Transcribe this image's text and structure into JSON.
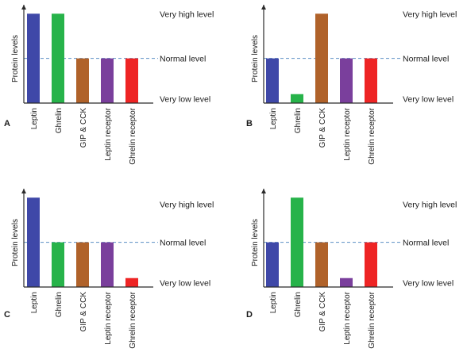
{
  "colors": {
    "Leptin": "#3f48a8",
    "Ghrelin": "#27b34a",
    "GIP & CCK": "#b0622a",
    "Leptin receptor": "#7a3f9c",
    "Ghrelin receptor": "#ee2424",
    "axis": "#2b2b2b",
    "dashed_line": "#5b8fc4"
  },
  "level_labels": {
    "high": "Very high level",
    "normal": "Normal level",
    "low": "Very low level"
  },
  "chart_data": [
    {
      "type": "bar",
      "panel": "A",
      "ylabel": "Protein levels",
      "categories": [
        "Leptin",
        "Ghrelin",
        "GIP & CCK",
        "Leptin receptor",
        "Ghrelin receptor"
      ],
      "values": [
        2,
        2,
        1,
        1,
        1
      ],
      "ylim": [
        0,
        2.2
      ],
      "reference_line": 1,
      "level_label_values": {
        "high": 2,
        "normal": 1,
        "low": 0.1
      }
    },
    {
      "type": "bar",
      "panel": "B",
      "ylabel": "Protein levels",
      "categories": [
        "Leptin",
        "Ghrelin",
        "GIP & CCK",
        "Leptin receptor",
        "Ghrelin receptor"
      ],
      "values": [
        1,
        0.2,
        2,
        1,
        1
      ],
      "ylim": [
        0,
        2.2
      ],
      "reference_line": 1,
      "level_label_values": {
        "high": 2,
        "normal": 1,
        "low": 0.1
      }
    },
    {
      "type": "bar",
      "panel": "C",
      "ylabel": "Protein levels",
      "categories": [
        "Leptin",
        "Ghrelin",
        "GIP & CCK",
        "Leptin receptor",
        "Ghrelin receptor"
      ],
      "values": [
        2,
        1,
        1,
        1,
        0.2
      ],
      "ylim": [
        0,
        2.2
      ],
      "reference_line": 1,
      "level_label_values": {
        "high": 1.85,
        "normal": 1,
        "low": 0.1
      }
    },
    {
      "type": "bar",
      "panel": "D",
      "ylabel": "Protein levels",
      "categories": [
        "Leptin",
        "Ghrelin",
        "GIP & CCK",
        "Leptin receptor",
        "Ghrelin receptor"
      ],
      "values": [
        1,
        2,
        1,
        0.2,
        1
      ],
      "ylim": [
        0,
        2.2
      ],
      "reference_line": 1,
      "level_label_values": {
        "high": 1.85,
        "normal": 1,
        "low": 0.1
      }
    }
  ]
}
